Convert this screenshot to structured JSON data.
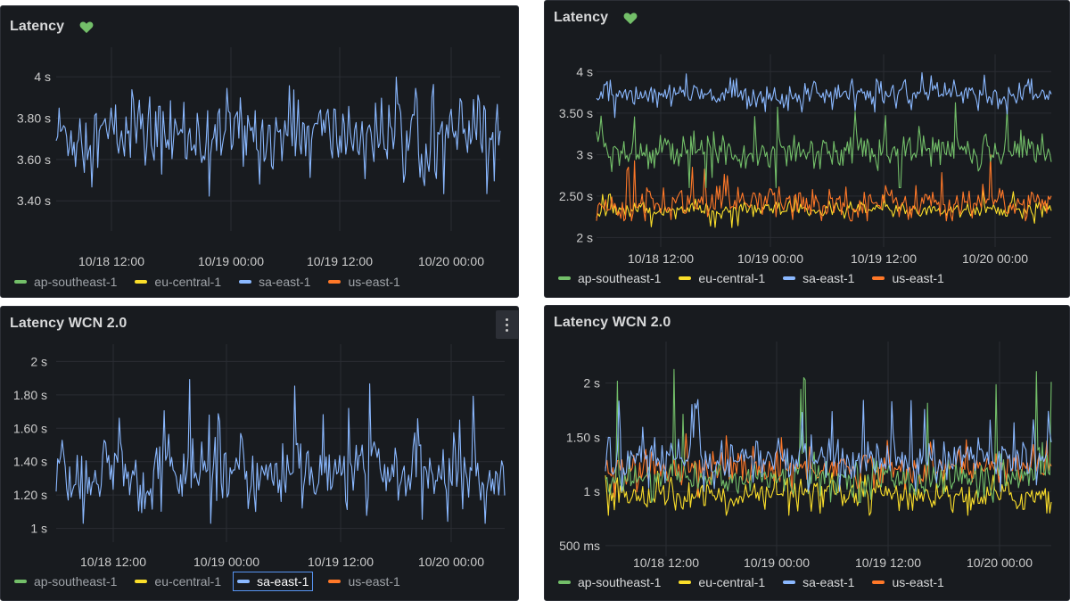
{
  "colors": {
    "ap-southeast-1": "#73bf69",
    "eu-central-1": "#fade2a",
    "sa-east-1": "#8ab8ff",
    "us-east-1": "#ff7828",
    "grid": "#2a2d33",
    "axis_text": "#cccccc",
    "heart": "#73bf69"
  },
  "legend_labels": [
    "ap-southeast-1",
    "eu-central-1",
    "sa-east-1",
    "us-east-1"
  ],
  "panels": {
    "left_top": {
      "title": "Latency"
    },
    "left_bottom": {
      "title": "Latency WCN 2.0"
    },
    "right_top": {
      "title": "Latency"
    },
    "right_bottom": {
      "title": "Latency WCN 2.0"
    }
  },
  "chart_data": [
    {
      "id": "left_top",
      "type": "line",
      "title": "Latency",
      "x_tick_labels": [
        "10/18 12:00",
        "10/19 00:00",
        "10/19 12:00",
        "10/20 00:00"
      ],
      "y_tick_labels": [
        "4 s",
        "3.80 s",
        "3.60 s",
        "3.40 s"
      ],
      "y_tick_values": [
        4.0,
        3.8,
        3.6,
        3.4
      ],
      "ylim": [
        3.28,
        4.1
      ],
      "series": [
        {
          "name": "sa-east-1",
          "center": 3.72,
          "spread": 0.11,
          "min": 3.34,
          "max": 4.02,
          "visible": true
        }
      ]
    },
    {
      "id": "left_bottom",
      "type": "line",
      "title": "Latency WCN 2.0",
      "x_tick_labels": [
        "10/18 12:00",
        "10/19 00:00",
        "10/19 12:00",
        "10/20 00:00"
      ],
      "y_tick_labels": [
        "2 s",
        "1.80 s",
        "1.60 s",
        "1.40 s",
        "1.20 s",
        "1 s"
      ],
      "y_tick_values": [
        2.0,
        1.8,
        1.6,
        1.4,
        1.2,
        1.0
      ],
      "ylim": [
        0.95,
        2.05
      ],
      "series": [
        {
          "name": "sa-east-1",
          "center": 1.32,
          "spread": 0.13,
          "min": 1.03,
          "max": 1.9,
          "visible": true
        }
      ]
    },
    {
      "id": "right_top",
      "type": "line",
      "title": "Latency",
      "x_tick_labels": [
        "10/18 12:00",
        "10/19 00:00",
        "10/19 12:00",
        "10/20 00:00"
      ],
      "y_tick_labels": [
        "4 s",
        "3.50 s",
        "3 s",
        "2.50 s",
        "2 s"
      ],
      "y_tick_values": [
        4.0,
        3.5,
        3.0,
        2.5,
        2.0
      ],
      "ylim": [
        1.95,
        4.1
      ],
      "series": [
        {
          "name": "sa-east-1",
          "center": 3.72,
          "spread": 0.09,
          "min": 3.3,
          "max": 4.0,
          "visible": true
        },
        {
          "name": "ap-southeast-1",
          "center": 3.05,
          "spread": 0.13,
          "min": 2.6,
          "max": 3.7,
          "visible": true
        },
        {
          "name": "us-east-1",
          "center": 2.42,
          "spread": 0.12,
          "min": 2.2,
          "max": 3.0,
          "visible": true
        },
        {
          "name": "eu-central-1",
          "center": 2.33,
          "spread": 0.06,
          "min": 2.12,
          "max": 2.6,
          "visible": true
        }
      ]
    },
    {
      "id": "right_bottom",
      "type": "line",
      "title": "Latency WCN 2.0",
      "x_tick_labels": [
        "10/18 12:00",
        "10/19 00:00",
        "10/19 12:00",
        "10/20 00:00"
      ],
      "y_tick_labels": [
        "2 s",
        "1.50 s",
        "1 s",
        "500 ms"
      ],
      "y_tick_values": [
        2.0,
        1.5,
        1.0,
        0.5
      ],
      "ylim": [
        0.45,
        2.3
      ],
      "series": [
        {
          "name": "sa-east-1",
          "center": 1.3,
          "spread": 0.12,
          "min": 1.0,
          "max": 1.85,
          "visible": true
        },
        {
          "name": "ap-southeast-1",
          "center": 1.12,
          "spread": 0.1,
          "min": 0.9,
          "max": 2.15,
          "visible": true
        },
        {
          "name": "us-east-1",
          "center": 1.22,
          "spread": 0.09,
          "min": 0.95,
          "max": 1.55,
          "visible": true
        },
        {
          "name": "eu-central-1",
          "center": 0.96,
          "spread": 0.08,
          "min": 0.78,
          "max": 1.2,
          "visible": true
        }
      ]
    }
  ]
}
